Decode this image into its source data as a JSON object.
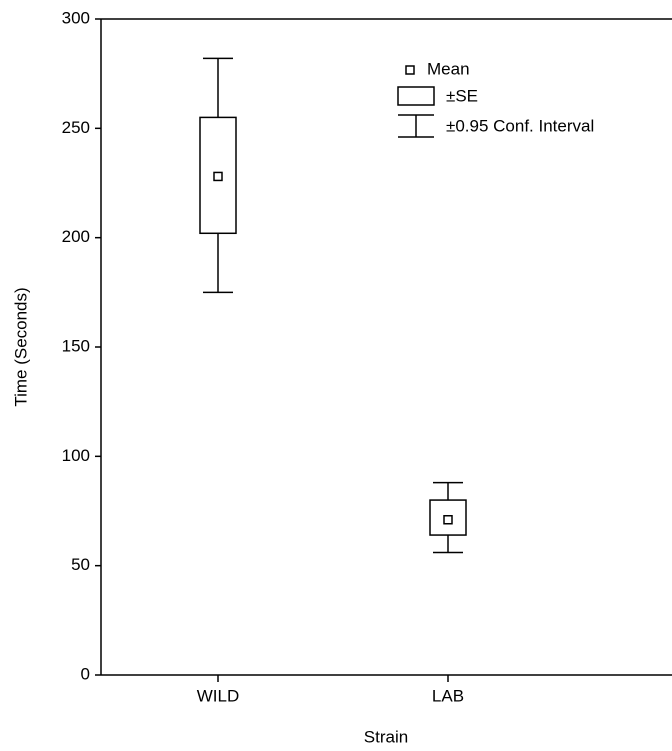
{
  "chart_data": {
    "type": "box",
    "x_label": "Strain",
    "y_label": "Time (Seconds)",
    "categories": [
      "WILD",
      "LAB"
    ],
    "mean": [
      228,
      71
    ],
    "se_lower": [
      202,
      64
    ],
    "se_upper": [
      255,
      80
    ],
    "ci_lower": [
      175,
      56
    ],
    "ci_upper": [
      282,
      88
    ],
    "legend": {
      "mean": "Mean",
      "se": "±SE",
      "ci": "±0.95 Conf. Interval"
    },
    "ylim": [
      0,
      300
    ],
    "yticks": [
      0,
      50,
      100,
      150,
      200,
      250,
      300
    ],
    "color": "#000000"
  }
}
